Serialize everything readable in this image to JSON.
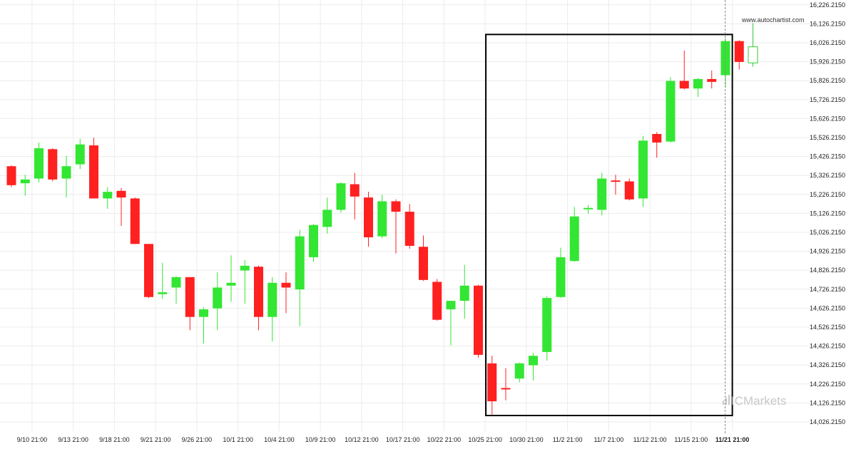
{
  "watermark_text": "www.autochartist.com",
  "brand_text": "ICMarkets",
  "colors": {
    "bull": "#33e633",
    "bear": "#ff2020",
    "bull_outline": "#33cc33",
    "grid": "#ececec",
    "pattern_box": "#000000",
    "current_line": "#888888",
    "brand": "#c8c8c8"
  },
  "chart_data": {
    "type": "candlestick",
    "grid": true,
    "y_axis_side": "right",
    "ylim": [
      14000,
      16250
    ],
    "y_ticks": [
      "16,226.2150",
      "16,126.2150",
      "16,026.2150",
      "15,926.2150",
      "15,826.2150",
      "15,726.2150",
      "15,626.2150",
      "15,526.2150",
      "15,426.2150",
      "15,326.2150",
      "15,226.2150",
      "15,126.2150",
      "15,026.2150",
      "14,926.2150",
      "14,826.2150",
      "14,726.2150",
      "14,626.2150",
      "14,526.2150",
      "14,426.2150",
      "14,326.2150",
      "14,226.2150",
      "14,126.2150",
      "14,026.2150"
    ],
    "x_ticks": [
      {
        "label": "9/10 21:00",
        "index": 1.5
      },
      {
        "label": "9/13 21:00",
        "index": 4.5
      },
      {
        "label": "9/18 21:00",
        "index": 7.5
      },
      {
        "label": "9/21 21:00",
        "index": 10.5
      },
      {
        "label": "9/26 21:00",
        "index": 13.5
      },
      {
        "label": "10/1 21:00",
        "index": 16.5
      },
      {
        "label": "10/4 21:00",
        "index": 19.5
      },
      {
        "label": "10/9 21:00",
        "index": 22.5
      },
      {
        "label": "10/12 21:00",
        "index": 25.5
      },
      {
        "label": "10/17 21:00",
        "index": 28.5
      },
      {
        "label": "10/22 21:00",
        "index": 31.5
      },
      {
        "label": "10/25 21:00",
        "index": 34.5
      },
      {
        "label": "10/30 21:00",
        "index": 37.5
      },
      {
        "label": "11/2 21:00",
        "index": 40.5
      },
      {
        "label": "11/7 21:00",
        "index": 43.5
      },
      {
        "label": "11/12 21:00",
        "index": 46.5
      },
      {
        "label": "11/15 21:00",
        "index": 49.5
      },
      {
        "label": "11/21 21:00",
        "index": 52.5,
        "bold": true
      }
    ],
    "candles": [
      {
        "o": 15375,
        "h": 15380,
        "c": 15275,
        "l": 15265
      },
      {
        "o": 15285,
        "h": 15330,
        "c": 15305,
        "l": 15220
      },
      {
        "o": 15310,
        "h": 15500,
        "c": 15470,
        "l": 15290
      },
      {
        "o": 15465,
        "h": 15470,
        "c": 15305,
        "l": 15295
      },
      {
        "o": 15310,
        "h": 15430,
        "c": 15375,
        "l": 15210
      },
      {
        "o": 15385,
        "h": 15520,
        "c": 15490,
        "l": 15360
      },
      {
        "o": 15485,
        "h": 15525,
        "c": 15205,
        "l": 15205
      },
      {
        "o": 15205,
        "h": 15265,
        "c": 15240,
        "l": 15150
      },
      {
        "o": 15245,
        "h": 15260,
        "c": 15210,
        "l": 15060
      },
      {
        "o": 15205,
        "h": 15210,
        "c": 14965,
        "l": 14965
      },
      {
        "o": 14965,
        "h": 14965,
        "c": 14685,
        "l": 14680
      },
      {
        "o": 14700,
        "h": 14865,
        "c": 14710,
        "l": 14675
      },
      {
        "o": 14735,
        "h": 14795,
        "c": 14790,
        "l": 14650
      },
      {
        "o": 14790,
        "h": 14790,
        "c": 14580,
        "l": 14510
      },
      {
        "o": 14580,
        "h": 14630,
        "c": 14620,
        "l": 14440
      },
      {
        "o": 14625,
        "h": 14815,
        "c": 14735,
        "l": 14510
      },
      {
        "o": 14745,
        "h": 14905,
        "c": 14760,
        "l": 14660
      },
      {
        "o": 14825,
        "h": 14880,
        "c": 14850,
        "l": 14650
      },
      {
        "o": 14845,
        "h": 14850,
        "c": 14580,
        "l": 14510
      },
      {
        "o": 14580,
        "h": 14790,
        "c": 14760,
        "l": 14450
      },
      {
        "o": 14760,
        "h": 14815,
        "c": 14735,
        "l": 14600
      },
      {
        "o": 14725,
        "h": 15040,
        "c": 15005,
        "l": 14530
      },
      {
        "o": 14895,
        "h": 15070,
        "c": 15065,
        "l": 14870
      },
      {
        "o": 15055,
        "h": 15210,
        "c": 15145,
        "l": 15020
      },
      {
        "o": 15145,
        "h": 15290,
        "c": 15285,
        "l": 15130
      },
      {
        "o": 15280,
        "h": 15340,
        "c": 15215,
        "l": 15095
      },
      {
        "o": 15210,
        "h": 15240,
        "c": 15000,
        "l": 14950
      },
      {
        "o": 15005,
        "h": 15225,
        "c": 15190,
        "l": 14995
      },
      {
        "o": 15190,
        "h": 15200,
        "c": 15135,
        "l": 14915
      },
      {
        "o": 15135,
        "h": 15175,
        "c": 14955,
        "l": 14940
      },
      {
        "o": 14950,
        "h": 15010,
        "c": 14775,
        "l": 14770
      },
      {
        "o": 14765,
        "h": 14780,
        "c": 14565,
        "l": 14560
      },
      {
        "o": 14620,
        "h": 14655,
        "c": 14665,
        "l": 14430
      },
      {
        "o": 14665,
        "h": 14855,
        "c": 14745,
        "l": 14570
      },
      {
        "o": 14745,
        "h": 14750,
        "c": 14380,
        "l": 14365
      },
      {
        "o": 14335,
        "h": 14375,
        "c": 14135,
        "l": 14065
      },
      {
        "o": 14205,
        "h": 14310,
        "c": 14200,
        "l": 14140
      },
      {
        "o": 14255,
        "h": 14340,
        "c": 14335,
        "l": 14235
      },
      {
        "o": 14325,
        "h": 14390,
        "c": 14375,
        "l": 14245
      },
      {
        "o": 14395,
        "h": 14690,
        "c": 14680,
        "l": 14350
      },
      {
        "o": 14685,
        "h": 14945,
        "c": 14895,
        "l": 14680
      },
      {
        "o": 14875,
        "h": 15160,
        "c": 15110,
        "l": 14870
      },
      {
        "o": 15150,
        "h": 15170,
        "c": 15155,
        "l": 15125
      },
      {
        "o": 15145,
        "h": 15340,
        "c": 15310,
        "l": 15115
      },
      {
        "o": 15300,
        "h": 15330,
        "c": 15295,
        "l": 15225
      },
      {
        "o": 15295,
        "h": 15310,
        "c": 15200,
        "l": 15195
      },
      {
        "o": 15205,
        "h": 15535,
        "c": 15510,
        "l": 15160
      },
      {
        "o": 15545,
        "h": 15555,
        "c": 15500,
        "l": 15420
      },
      {
        "o": 15505,
        "h": 15845,
        "c": 15825,
        "l": 15500
      },
      {
        "o": 15825,
        "h": 15985,
        "c": 15785,
        "l": 15780
      },
      {
        "o": 15785,
        "h": 15840,
        "c": 15835,
        "l": 15740
      },
      {
        "o": 15835,
        "h": 15880,
        "c": 15820,
        "l": 15785
      },
      {
        "o": 15855,
        "h": 16050,
        "c": 16035,
        "l": 15790
      },
      {
        "o": 16035,
        "h": 16040,
        "c": 15925,
        "l": 15885
      },
      {
        "o": 15920,
        "h": 16130,
        "c": 16005,
        "l": 15900,
        "hollow": true
      }
    ],
    "pattern_box": {
      "from_index": 34.55,
      "to_index": 52.5,
      "high": 16070,
      "low": 14060
    },
    "current_marker_index": 52.5
  }
}
